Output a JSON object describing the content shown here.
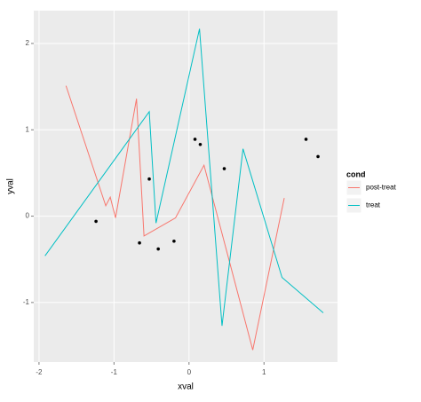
{
  "chart_data": {
    "type": "line",
    "x_label": "xval",
    "y_label": "yval",
    "legend_title": "cond",
    "legend": "right",
    "series": [
      {
        "name": "post-treat",
        "color": "#f8766d",
        "x": [
          -1.64,
          -1.11,
          -1.05,
          -0.98,
          -0.7,
          -0.6,
          -0.18,
          0.2,
          0.85,
          1.27
        ],
        "values": [
          1.51,
          0.12,
          0.22,
          -0.02,
          1.36,
          -0.23,
          -0.02,
          0.59,
          -1.55,
          0.21
        ]
      },
      {
        "name": "treat",
        "color": "#00bfc4",
        "x": [
          -1.92,
          -0.53,
          -0.44,
          0.14,
          0.44,
          0.72,
          1.24,
          1.79
        ],
        "values": [
          -0.46,
          1.21,
          -0.08,
          2.17,
          -1.27,
          0.78,
          -0.71,
          -1.12
        ]
      }
    ],
    "points": {
      "color": "#000000",
      "x": [
        -1.24,
        -0.66,
        -0.53,
        -0.41,
        -0.2,
        0.08,
        0.15,
        0.47,
        1.56,
        1.72
      ],
      "values": [
        -0.06,
        -0.31,
        0.43,
        -0.38,
        -0.29,
        0.89,
        0.83,
        0.55,
        0.89,
        0.69
      ]
    },
    "xlim": [
      -2.07,
      1.98
    ],
    "xticks": [
      -2,
      -1,
      0,
      1
    ],
    "ylim": [
      -1.69,
      2.38
    ],
    "yticks": [
      -1,
      0,
      1,
      2
    ],
    "grid": true
  }
}
